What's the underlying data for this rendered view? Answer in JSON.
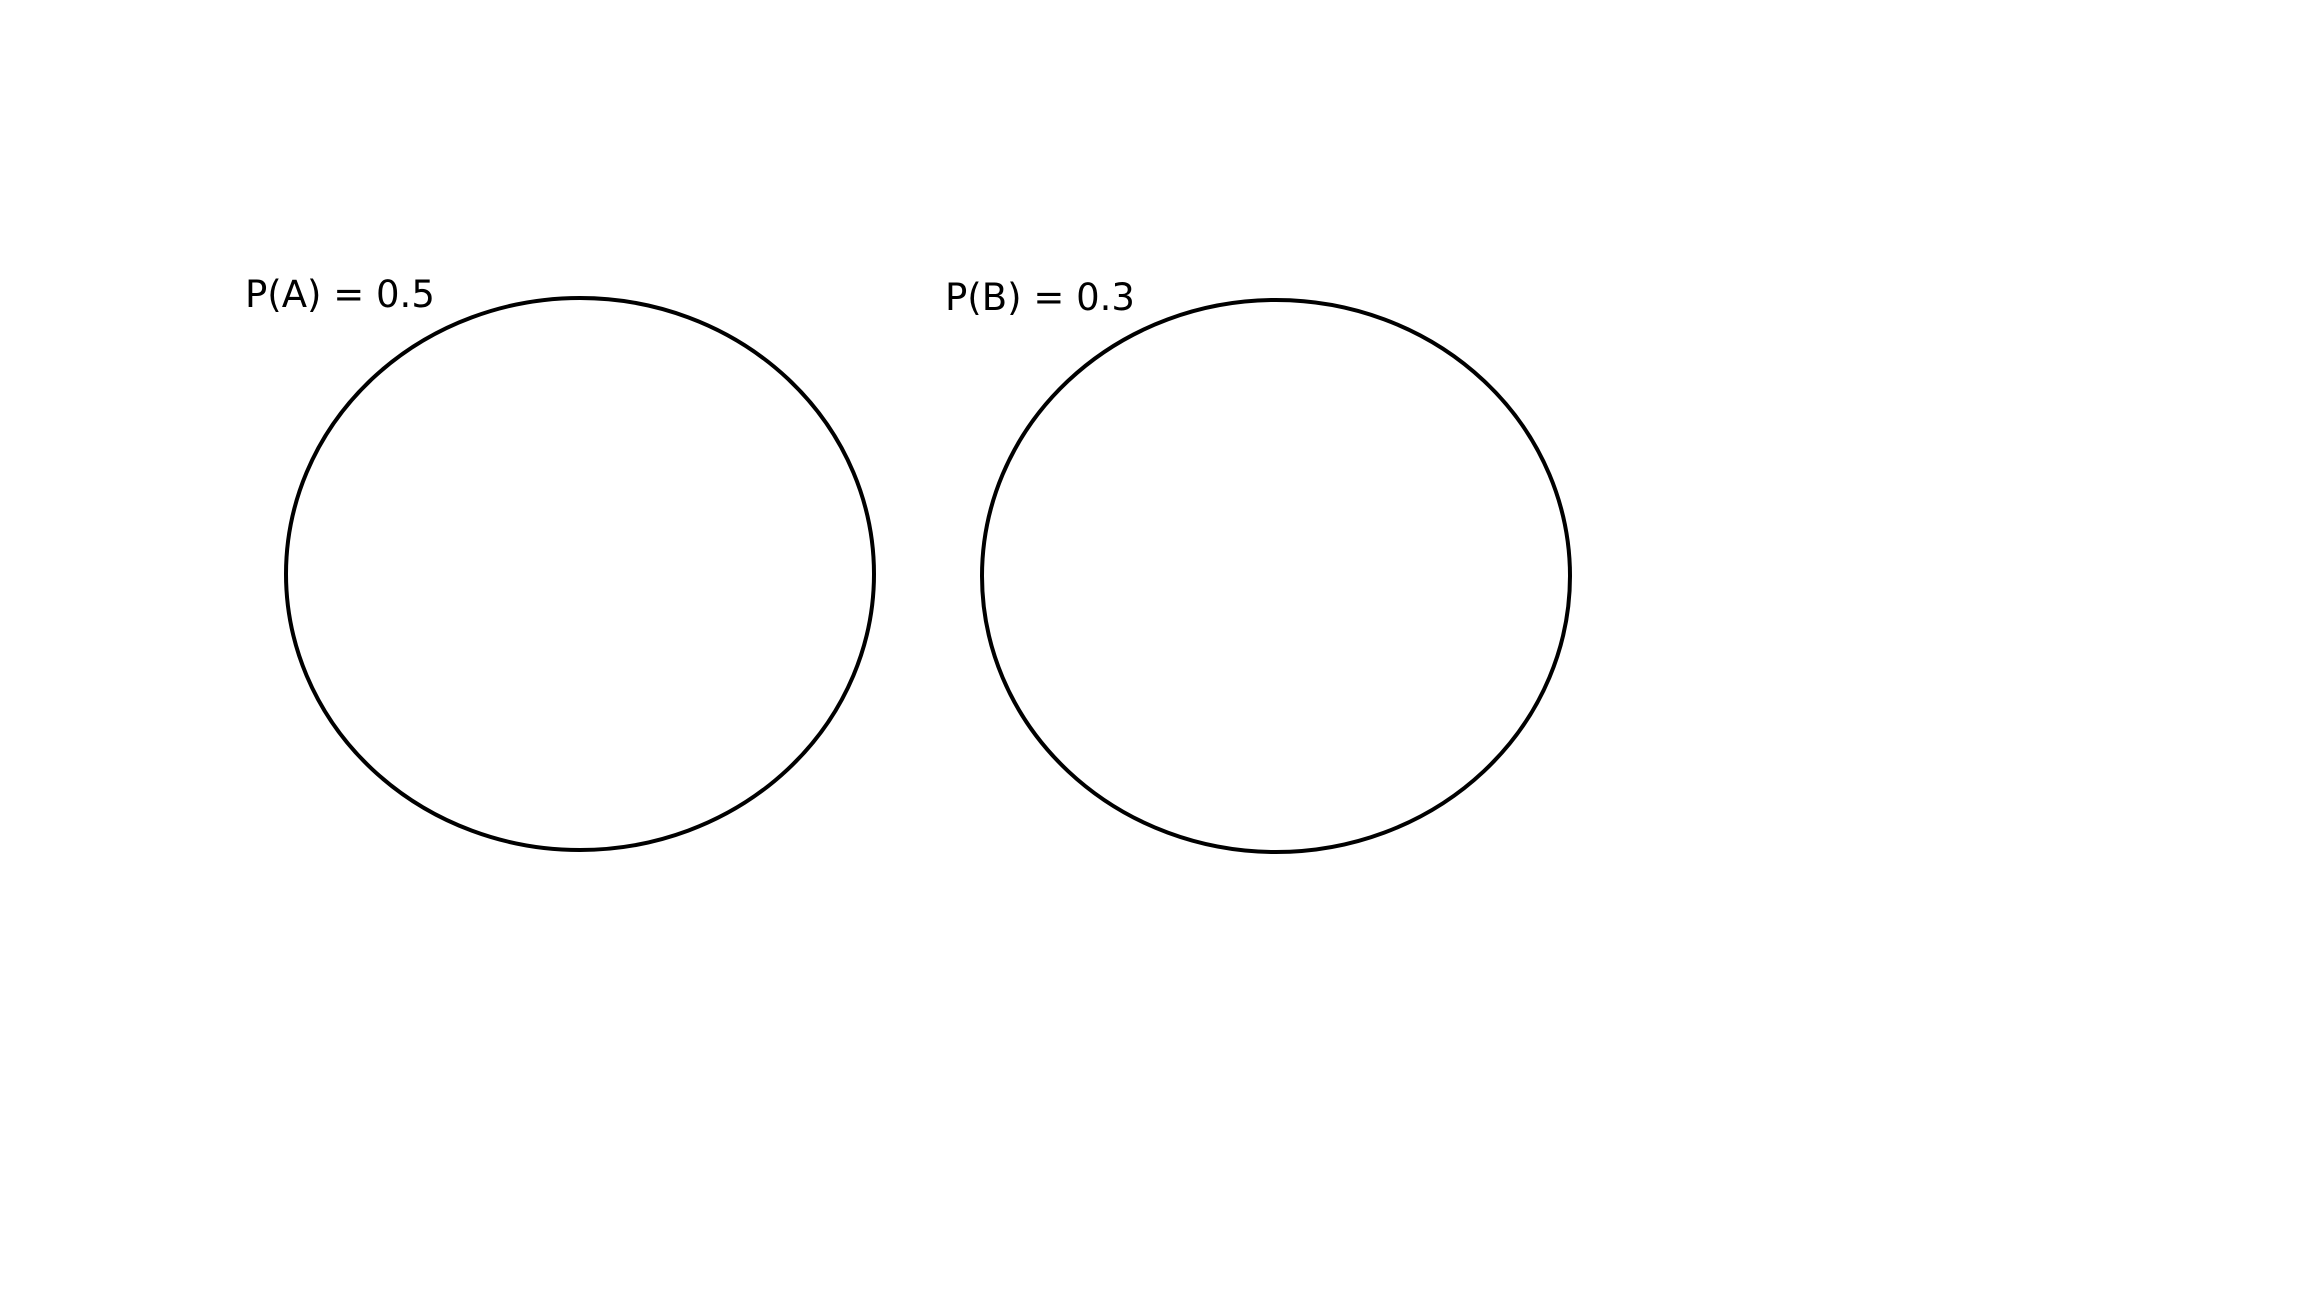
{
  "diagram": {
    "sets": [
      {
        "label": "P(A) = 0.5",
        "outline_color": "#000000"
      },
      {
        "label": "P(B) = 0.3",
        "outline_color": "#000000"
      }
    ],
    "background_color": "#ffffff"
  }
}
